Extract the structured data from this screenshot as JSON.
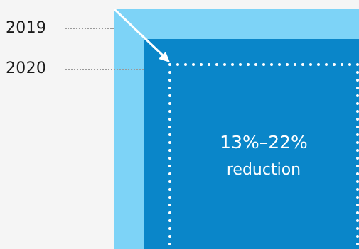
{
  "labels": {
    "year_outer": "2019",
    "year_inner": "2020"
  },
  "callout": {
    "value": "13%–22%",
    "caption": "reduction"
  },
  "colors": {
    "background": "#f5f5f5",
    "outer_box": "#7dd3f7",
    "inner_box": "#0a86c9",
    "dotted_frame": "#ffffff",
    "leader_line": "#9a9a9a",
    "text_dark": "#1a1a1a"
  }
}
